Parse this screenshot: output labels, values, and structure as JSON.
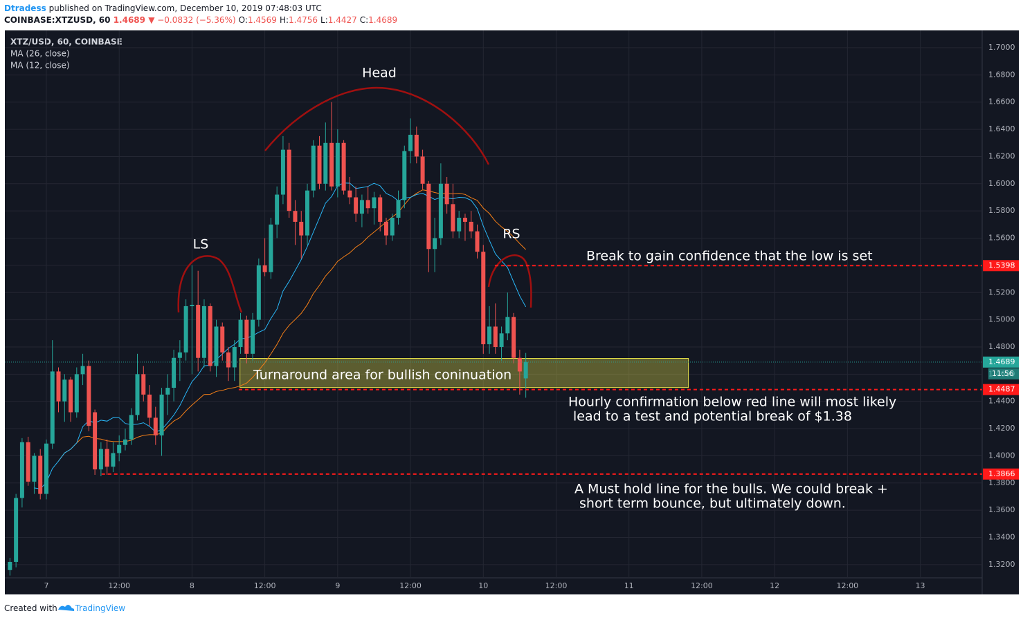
{
  "header": {
    "author": "Dtradess",
    "published": "published on TradingView.com, December 10, 2019 07:48:03 UTC",
    "symbol": "COINBASE:XTZUSD, 60",
    "last": "1.4689",
    "change": "▼ −0.0832 (−5.36%)",
    "ohlc": [
      {
        "key": "O:",
        "value": "1.4569"
      },
      {
        "key": "H:",
        "value": "1.4756"
      },
      {
        "key": "L:",
        "value": "1.4427"
      },
      {
        "key": "C:",
        "value": "1.4689"
      }
    ]
  },
  "footer": {
    "text": "Created with",
    "brand": "TradingView"
  },
  "chart_data": {
    "type": "candlestick",
    "title": "XTZ/USD, 60, COINBASE",
    "up_color": "#26a69a",
    "down_color": "#ef5350",
    "grid": true,
    "xlim": [
      -6.84,
      154.2
    ],
    "xticks": [
      {
        "value": 0,
        "label": "7"
      },
      {
        "value": 12,
        "label": "12:00"
      },
      {
        "value": 24,
        "label": "8"
      },
      {
        "value": 36,
        "label": "12:00"
      },
      {
        "value": 48,
        "label": "9"
      },
      {
        "value": 60,
        "label": "12:00"
      },
      {
        "value": 72,
        "label": "10"
      },
      {
        "value": 84,
        "label": "12:00"
      },
      {
        "value": 96,
        "label": "11"
      },
      {
        "value": 108,
        "label": "12:00"
      },
      {
        "value": 120,
        "label": "12"
      },
      {
        "value": 132,
        "label": "12:00"
      },
      {
        "value": 144,
        "label": "13"
      }
    ],
    "ylim": [
      1.2981,
      1.7127
    ],
    "yticks": [
      {
        "value": 1.32,
        "label": "1.3200"
      },
      {
        "value": 1.34,
        "label": "1.3400"
      },
      {
        "value": 1.36,
        "label": "1.3600"
      },
      {
        "value": 1.38,
        "label": "1.3800"
      },
      {
        "value": 1.4,
        "label": "1.4000"
      },
      {
        "value": 1.42,
        "label": "1.4200"
      },
      {
        "value": 1.44,
        "label": "1.4400"
      },
      {
        "value": 1.46,
        "label": "1.4600"
      },
      {
        "value": 1.48,
        "label": "1.4800"
      },
      {
        "value": 1.5,
        "label": "1.5000"
      },
      {
        "value": 1.52,
        "label": "1.5200"
      },
      {
        "value": 1.54,
        "label": "1.5400"
      },
      {
        "value": 1.56,
        "label": "1.5600"
      },
      {
        "value": 1.58,
        "label": "1.5800"
      },
      {
        "value": 1.6,
        "label": "1.6000"
      },
      {
        "value": 1.62,
        "label": "1.6200"
      },
      {
        "value": 1.64,
        "label": "1.6400"
      },
      {
        "value": 1.66,
        "label": "1.6600"
      },
      {
        "value": 1.68,
        "label": "1.6800"
      },
      {
        "value": 1.7,
        "label": "1.7000"
      }
    ],
    "x": [
      -6,
      -5,
      -4,
      -3,
      -2,
      -1,
      0,
      1,
      2,
      3,
      4,
      5,
      6,
      7,
      8,
      9,
      10,
      11,
      12,
      13,
      14,
      15,
      16,
      17,
      18,
      19,
      20,
      21,
      22,
      23,
      24,
      25,
      26,
      27,
      28,
      29,
      30,
      31,
      32,
      33,
      34,
      35,
      36,
      37,
      38,
      39,
      40,
      41,
      42,
      43,
      44,
      45,
      46,
      47,
      48,
      49,
      50,
      51,
      52,
      53,
      54,
      55,
      56,
      57,
      58,
      59,
      60,
      61,
      62,
      63,
      64,
      65,
      66,
      67,
      68,
      69,
      70,
      71,
      72,
      73,
      74,
      75,
      76,
      77,
      78,
      79
    ],
    "open": [
      1.316,
      1.322,
      1.369,
      1.41,
      1.381,
      1.4,
      1.372,
      1.409,
      1.462,
      1.44,
      1.456,
      1.432,
      1.46,
      1.466,
      1.432,
      1.39,
      1.405,
      1.392,
      1.402,
      1.408,
      1.412,
      1.43,
      1.46,
      1.445,
      1.428,
      1.415,
      1.445,
      1.45,
      1.472,
      1.476,
      1.51,
      1.511,
      1.472,
      1.51,
      1.466,
      1.495,
      1.476,
      1.465,
      1.48,
      1.5,
      1.475,
      1.5,
      1.54,
      1.535,
      1.57,
      1.592,
      1.625,
      1.58,
      1.572,
      1.562,
      1.595,
      1.628,
      1.6,
      1.63,
      1.598,
      1.63,
      1.595,
      1.59,
      1.578,
      1.588,
      1.582,
      1.59,
      1.572,
      1.562,
      1.575,
      1.588,
      1.624,
      1.636,
      1.62,
      1.6,
      1.552,
      1.56,
      1.6,
      1.585,
      1.565,
      1.575,
      1.572,
      1.565,
      1.55,
      1.482,
      1.495,
      1.48,
      1.49,
      1.502,
      1.472,
      1.4569
    ],
    "high": [
      1.325,
      1.372,
      1.413,
      1.414,
      1.402,
      1.405,
      1.412,
      1.485,
      1.465,
      1.46,
      1.458,
      1.465,
      1.475,
      1.47,
      1.434,
      1.41,
      1.412,
      1.41,
      1.415,
      1.42,
      1.435,
      1.475,
      1.466,
      1.452,
      1.436,
      1.45,
      1.46,
      1.478,
      1.485,
      1.515,
      1.54,
      1.536,
      1.515,
      1.512,
      1.5,
      1.498,
      1.48,
      1.485,
      1.505,
      1.503,
      1.505,
      1.545,
      1.56,
      1.575,
      1.598,
      1.635,
      1.63,
      1.588,
      1.58,
      1.6,
      1.632,
      1.635,
      1.645,
      1.66,
      1.64,
      1.632,
      1.605,
      1.598,
      1.592,
      1.598,
      1.594,
      1.592,
      1.575,
      1.578,
      1.595,
      1.628,
      1.648,
      1.642,
      1.625,
      1.602,
      1.575,
      1.615,
      1.605,
      1.6,
      1.58,
      1.578,
      1.58,
      1.57,
      1.555,
      1.51,
      1.512,
      1.495,
      1.52,
      1.505,
      1.478,
      1.4756
    ],
    "low": [
      1.312,
      1.318,
      1.362,
      1.378,
      1.372,
      1.368,
      1.368,
      1.405,
      1.432,
      1.425,
      1.425,
      1.428,
      1.452,
      1.418,
      1.386,
      1.385,
      1.386,
      1.388,
      1.396,
      1.404,
      1.408,
      1.426,
      1.44,
      1.422,
      1.408,
      1.4,
      1.43,
      1.44,
      1.455,
      1.47,
      1.46,
      1.462,
      1.465,
      1.462,
      1.458,
      1.47,
      1.455,
      1.455,
      1.475,
      1.468,
      1.47,
      1.495,
      1.532,
      1.53,
      1.56,
      1.585,
      1.575,
      1.555,
      1.545,
      1.555,
      1.59,
      1.596,
      1.595,
      1.595,
      1.59,
      1.592,
      1.585,
      1.572,
      1.568,
      1.578,
      1.57,
      1.565,
      1.555,
      1.558,
      1.57,
      1.582,
      1.615,
      1.615,
      1.596,
      1.535,
      1.535,
      1.555,
      1.578,
      1.56,
      1.56,
      1.558,
      1.56,
      1.545,
      1.475,
      1.475,
      1.475,
      1.47,
      1.485,
      1.468,
      1.445,
      1.4427
    ],
    "close": [
      1.322,
      1.369,
      1.41,
      1.381,
      1.4,
      1.372,
      1.409,
      1.462,
      1.44,
      1.456,
      1.432,
      1.46,
      1.466,
      1.422,
      1.39,
      1.405,
      1.392,
      1.402,
      1.408,
      1.412,
      1.43,
      1.46,
      1.445,
      1.428,
      1.415,
      1.445,
      1.45,
      1.472,
      1.476,
      1.51,
      1.511,
      1.472,
      1.51,
      1.466,
      1.495,
      1.476,
      1.465,
      1.48,
      1.5,
      1.475,
      1.5,
      1.54,
      1.535,
      1.57,
      1.592,
      1.625,
      1.58,
      1.572,
      1.562,
      1.595,
      1.628,
      1.6,
      1.63,
      1.598,
      1.63,
      1.595,
      1.59,
      1.578,
      1.588,
      1.582,
      1.59,
      1.572,
      1.562,
      1.575,
      1.588,
      1.624,
      1.636,
      1.62,
      1.6,
      1.552,
      1.56,
      1.6,
      1.585,
      1.565,
      1.575,
      1.572,
      1.565,
      1.55,
      1.482,
      1.495,
      1.48,
      1.49,
      1.502,
      1.472,
      1.462,
      1.4689
    ],
    "indicators": [
      {
        "name": "MA (26, close)",
        "period": 26,
        "color": "#f57f17"
      },
      {
        "name": "MA (12, close)",
        "period": 12,
        "color": "#29b6f6"
      }
    ],
    "last_price": {
      "value": 1.4689,
      "label": "1.4689",
      "countdown": "11:56",
      "color": "#26a69a"
    },
    "levels": [
      {
        "value": 1.5398,
        "label": "1.5398",
        "start": 73.9
      },
      {
        "value": 1.4487,
        "label": "1.4487",
        "start": 31.7
      },
      {
        "value": 1.3866,
        "label": "1.3866",
        "start": 9.1
      }
    ],
    "level_color": "#ff1a1a",
    "zone": {
      "top": 1.4716,
      "bottom": 1.4502,
      "start": 31.9,
      "end": 105.8,
      "color": "#e6e04a"
    },
    "annotations": {
      "head": "Head",
      "ls": "LS",
      "rs": "RS",
      "break": "Break to gain confidence that the low is set",
      "zone": "Turnaround area for bullish coninuation",
      "hourly": [
        "Hourly confirmation below red line will most likely",
        "lead to a test and potential break of $1.38"
      ],
      "must": [
        "A Must hold line for the bulls. We could break +",
        "short term bounce, but ultimately down."
      ]
    }
  }
}
